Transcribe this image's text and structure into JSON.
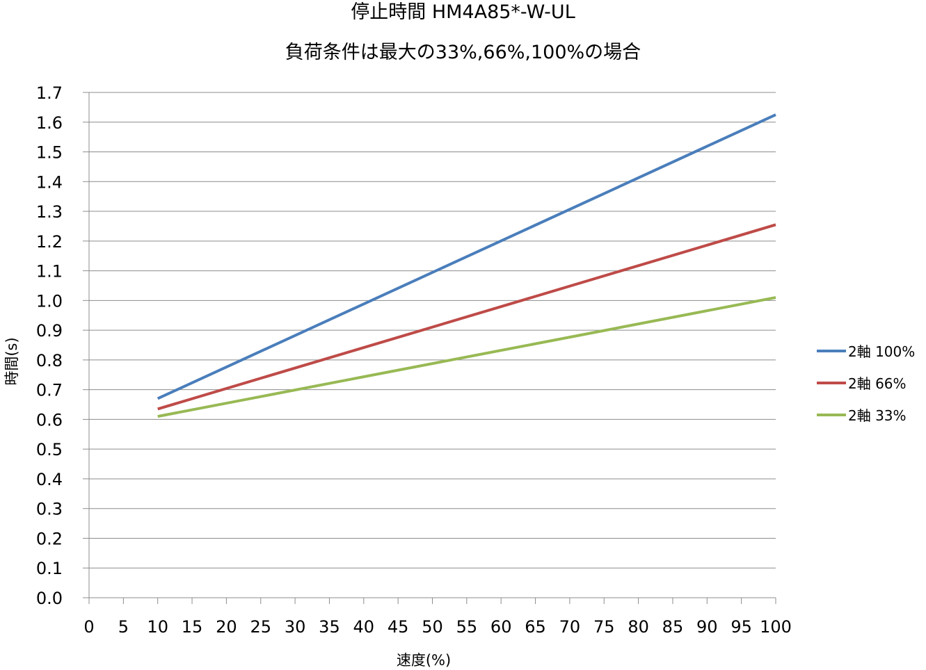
{
  "chart_data": {
    "type": "line",
    "title": "停止時間 HM4A85*-W-UL",
    "subtitle": "負荷条件は最大の33%,66%,100%の場合",
    "xlabel": "速度(%)",
    "ylabel": "時間(s)",
    "xlim": [
      0,
      100
    ],
    "ylim": [
      0.0,
      1.7
    ],
    "x_ticks": [
      "0",
      "5",
      "10",
      "15",
      "20",
      "25",
      "30",
      "35",
      "40",
      "45",
      "50",
      "55",
      "60",
      "65",
      "70",
      "75",
      "80",
      "85",
      "90",
      "95",
      "100"
    ],
    "y_ticks": [
      "0.0",
      "0.1",
      "0.2",
      "0.3",
      "0.4",
      "0.5",
      "0.6",
      "0.7",
      "0.8",
      "0.9",
      "1.0",
      "1.1",
      "1.2",
      "1.3",
      "1.4",
      "1.5",
      "1.6",
      "1.7"
    ],
    "grid": "horizontal",
    "legend_position": "right",
    "series": [
      {
        "name": "2軸 100%",
        "color": "#4a7ebb",
        "x": [
          10,
          100
        ],
        "y": [
          0.67,
          1.625
        ]
      },
      {
        "name": "2軸 66%",
        "color": "#be4b48",
        "x": [
          10,
          100
        ],
        "y": [
          0.635,
          1.255
        ]
      },
      {
        "name": "2軸 33%",
        "color": "#98b954",
        "x": [
          10,
          100
        ],
        "y": [
          0.61,
          1.01
        ]
      }
    ]
  }
}
